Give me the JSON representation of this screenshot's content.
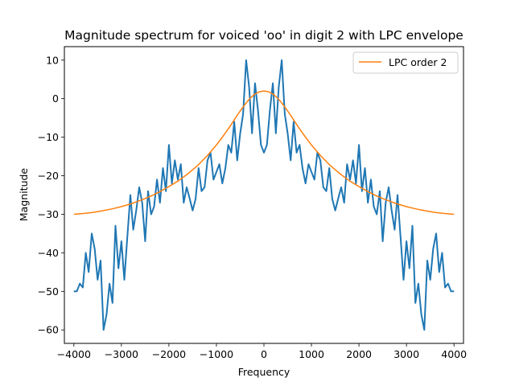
{
  "chart_data": {
    "type": "line",
    "title": "Magnitude spectrum for voiced 'oo' in digit 2 with LPC envelope",
    "xlabel": "Frequency",
    "ylabel": "Magnitude",
    "xlim": [
      -4200,
      4200
    ],
    "ylim": [
      -63.5,
      13.5
    ],
    "x_ticks": [
      -4000,
      -3000,
      -2000,
      -1000,
      0,
      1000,
      2000,
      3000,
      4000
    ],
    "y_ticks": [
      10,
      0,
      -10,
      -20,
      -30,
      -40,
      -50,
      -60
    ],
    "x_tick_labels": [
      "−4000",
      "−3000",
      "−2000",
      "−1000",
      "0",
      "1000",
      "2000",
      "3000",
      "4000"
    ],
    "y_tick_labels": [
      "10",
      "0",
      "−10",
      "−20",
      "−30",
      "−40",
      "−50",
      "−60"
    ],
    "grid": false,
    "legend": {
      "position": "upper right",
      "entries": [
        "LPC order 2"
      ]
    },
    "series": [
      {
        "color": "#1f77b4",
        "x": [
          0,
          62,
          125,
          188,
          250,
          312,
          375,
          438,
          500,
          562,
          625,
          688,
          750,
          812,
          875,
          938,
          1000,
          1062,
          1125,
          1188,
          1250,
          1312,
          1375,
          1438,
          1500,
          1562,
          1625,
          1688,
          1750,
          1812,
          1875,
          1938,
          2000,
          2062,
          2125,
          2188,
          2250,
          2312,
          2375,
          2438,
          2500,
          2562,
          2625,
          2688,
          2750,
          2812,
          2875,
          2938,
          3000,
          3062,
          3125,
          3188,
          3250,
          3312,
          3375,
          3438,
          3500,
          3562,
          3625,
          3688,
          3750,
          3812,
          3875,
          3938,
          4000
        ],
        "y": [
          -14,
          -12,
          -3,
          4,
          -9,
          3,
          10,
          -4,
          -9,
          -16,
          -6,
          -14,
          -12,
          -18,
          -22,
          -17,
          -19,
          -21,
          -14,
          -16,
          -23,
          -24,
          -18,
          -26,
          -29,
          -26,
          -23,
          -27,
          -17,
          -21,
          -16,
          -22,
          -12,
          -24,
          -18,
          -27,
          -21,
          -28,
          -30,
          -24,
          -37,
          -27,
          -23,
          -29,
          -34,
          -25,
          -36,
          -47,
          -37,
          -44,
          -33,
          -53,
          -48,
          -56,
          -60,
          -42,
          -47,
          -39,
          -35,
          -45,
          -40,
          -49,
          -48,
          -50,
          -50
        ]
      },
      {
        "name": "LPC order 2",
        "color": "#ff7f0e",
        "x": [
          0,
          100,
          200,
          300,
          400,
          500,
          600,
          700,
          800,
          900,
          1000,
          1200,
          1400,
          1600,
          1800,
          2000,
          2200,
          2400,
          2600,
          2800,
          3000,
          3200,
          3400,
          3600,
          3800,
          4000
        ],
        "y": [
          2,
          1.8,
          1.1,
          0,
          -1.5,
          -3.2,
          -5,
          -6.9,
          -8.7,
          -10.4,
          -12,
          -14.9,
          -17.4,
          -19.5,
          -21.3,
          -22.8,
          -24.2,
          -25.4,
          -26.4,
          -27.3,
          -28,
          -28.6,
          -29.1,
          -29.5,
          -29.8,
          -30
        ]
      }
    ]
  }
}
